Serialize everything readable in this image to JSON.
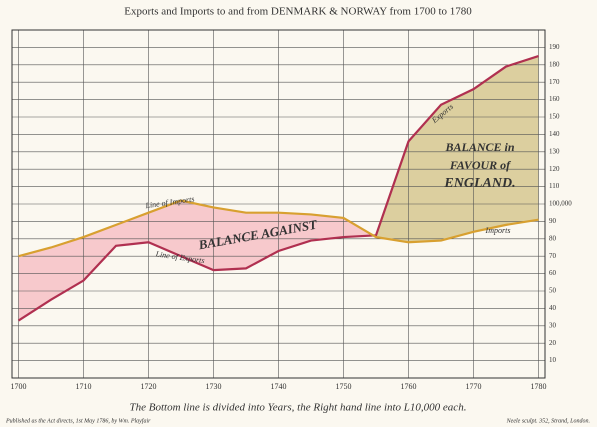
{
  "chart_data": {
    "type": "line",
    "title": "Exports and Imports to and from DENMARK & NORWAY from 1700 to 1780",
    "caption": "The Bottom line is divided into Years, the Right hand line into L10,000 each.",
    "footer_left": "Published as the Act directs, 1st May 1786, by Wm. Playfair",
    "footer_right": "Neele sculpt. 352, Strand, London.",
    "annotations": [
      "Line of Imports",
      "Line of Exports",
      "BALANCE AGAINST",
      "BALANCE in",
      "FAVOUR of",
      "ENGLAND.",
      "Exports",
      "Imports"
    ],
    "x": [
      1700,
      1705,
      1710,
      1715,
      1720,
      1725,
      1730,
      1735,
      1740,
      1745,
      1750,
      1755,
      1760,
      1765,
      1770,
      1775,
      1780
    ],
    "series": [
      {
        "name": "Exports",
        "color": "#b03050",
        "values": [
          33,
          45,
          56,
          76,
          78,
          70,
          62,
          63,
          73,
          79,
          81,
          82,
          136,
          157,
          166,
          179,
          185
        ]
      },
      {
        "name": "Imports",
        "color": "#d8a030",
        "values": [
          70,
          75,
          81,
          88,
          95,
          102,
          98,
          95,
          95,
          94,
          92,
          81,
          78,
          79,
          84,
          88,
          91
        ]
      }
    ],
    "xlim": [
      1699,
      1781
    ],
    "xticks": [
      1700,
      1710,
      1720,
      1730,
      1740,
      1750,
      1760,
      1770,
      1780
    ],
    "ylim": [
      0,
      200
    ],
    "yticks": [
      10,
      20,
      30,
      40,
      50,
      60,
      70,
      80,
      90,
      {
        "value": 100,
        "label": "100,000"
      },
      110,
      120,
      130,
      140,
      150,
      160,
      170,
      180,
      190
    ],
    "grid": true
  }
}
